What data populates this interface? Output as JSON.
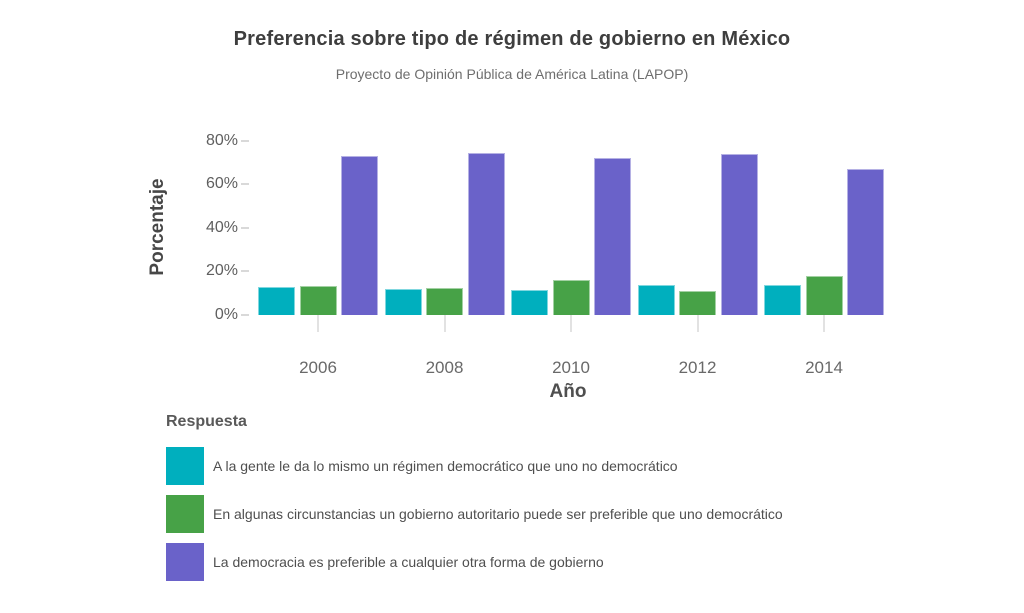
{
  "title": "Preferencia sobre tipo de régimen de gobierno en México",
  "subtitle": "Proyecto de Opinión Pública de América Latina (LAPOP)",
  "y_axis": {
    "label": "Porcentaje"
  },
  "x_axis": {
    "label": "Año"
  },
  "legend": {
    "title": "Respuesta"
  },
  "colors": {
    "teal": "#00AFBE",
    "green": "#47A247",
    "purple": "#6A62C9"
  },
  "chart_data": {
    "type": "bar",
    "title": "Preferencia sobre tipo de régimen de gobierno en México",
    "subtitle": "Proyecto de Opinión Pública de América Latina (LAPOP)",
    "categories": [
      "2006",
      "2008",
      "2010",
      "2012",
      "2014"
    ],
    "series": [
      {
        "name": "A la gente le da lo mismo un régimen democrático que uno no democrático",
        "color": "#00AFBE",
        "values": [
          13,
          12,
          11.5,
          14,
          14
        ]
      },
      {
        "name": "En algunas circunstancias un gobierno autoritario puede ser preferible que uno democrático",
        "color": "#47A247",
        "values": [
          13.5,
          12.5,
          16,
          11,
          18
        ]
      },
      {
        "name": "La democracia es preferible a cualquier otra forma de gobierno",
        "color": "#6A62C9",
        "values": [
          73,
          74.5,
          72,
          74,
          67
        ]
      }
    ],
    "xlabel": "Año",
    "ylabel": "Porcentaje",
    "ylim": [
      0,
      90
    ],
    "yticks": [
      0,
      20,
      40,
      60,
      80
    ],
    "ytick_suffix": "%",
    "grid": false,
    "legend_title": "Respuesta",
    "legend_position": "bottom-left"
  }
}
